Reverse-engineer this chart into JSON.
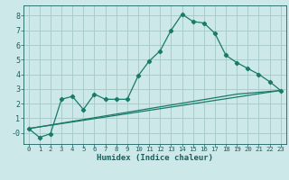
{
  "title": "",
  "xlabel": "Humidex (Indice chaleur)",
  "background_color": "#cce8e8",
  "grid_color": "#aacccc",
  "line_color": "#1a7a6a",
  "xlim": [
    -0.5,
    23.5
  ],
  "ylim": [
    -0.75,
    8.7
  ],
  "xticks": [
    0,
    1,
    2,
    3,
    4,
    5,
    6,
    7,
    8,
    9,
    10,
    11,
    12,
    13,
    14,
    15,
    16,
    17,
    18,
    19,
    20,
    21,
    22,
    23
  ],
  "yticks": [
    0,
    1,
    2,
    3,
    4,
    5,
    6,
    7,
    8
  ],
  "ytick_labels": [
    "-0",
    "1",
    "2",
    "3",
    "4",
    "5",
    "6",
    "7",
    "8"
  ],
  "line1_x": [
    0,
    1,
    2,
    3,
    4,
    5,
    6,
    7,
    8,
    9,
    10,
    11,
    12,
    13,
    14,
    15,
    16,
    17,
    18,
    19,
    20,
    21,
    22,
    23
  ],
  "line1_y": [
    0.3,
    -0.3,
    -0.05,
    2.3,
    2.5,
    1.6,
    2.65,
    2.3,
    2.3,
    2.3,
    3.9,
    4.9,
    5.6,
    7.0,
    8.1,
    7.6,
    7.5,
    6.8,
    5.3,
    4.8,
    4.4,
    4.0,
    3.5,
    2.9
  ],
  "line2_x": [
    0,
    23
  ],
  "line2_y": [
    0.3,
    2.9
  ],
  "line3_x": [
    0,
    19,
    23
  ],
  "line3_y": [
    0.3,
    2.65,
    2.9
  ]
}
